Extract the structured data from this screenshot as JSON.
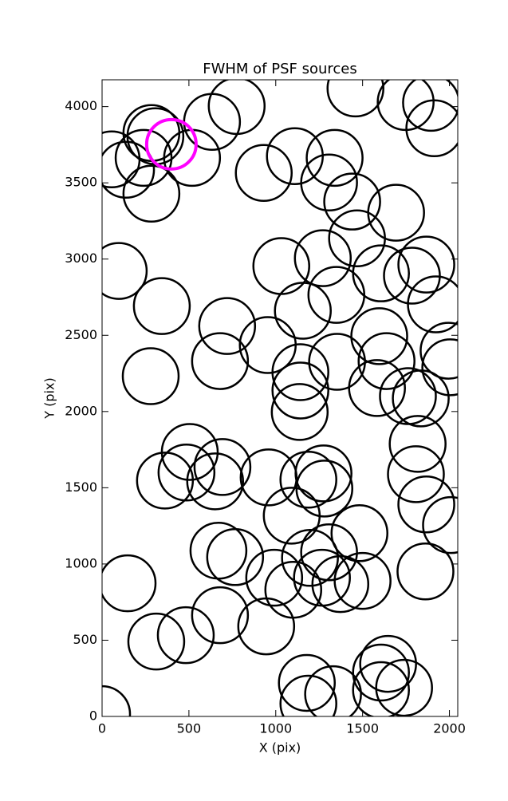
{
  "chart_data": {
    "type": "scatter",
    "title": "FWHM of PSF sources",
    "x_label": "X (pix)",
    "y_label": "Y (pix)",
    "xlim": [
      0,
      2048
    ],
    "ylim": [
      0,
      4176
    ],
    "xticks": [
      0,
      500,
      1000,
      1500,
      2000
    ],
    "yticks": [
      0,
      500,
      1000,
      1500,
      2000,
      2500,
      3000,
      3500,
      4000
    ],
    "series": [
      {
        "color": "#000000",
        "x": [
          0,
          147,
          312,
          482,
          679,
          945,
          1179,
          1188,
          1330,
          1606,
          1647,
          1606,
          1739,
          1862,
          2009,
          1867,
          1807,
          1817,
          1835,
          1761,
          1583,
          1638,
          1596,
          1995,
          2005,
          1922,
          1784,
          1867,
          1606,
          1468,
          1693,
          1440,
          1349,
          1271,
          1156,
          1032,
          1307,
          1339,
          1110,
          931,
          1459,
          1748,
          1894,
          1913,
          775,
          633,
          518,
          284,
          239,
          138,
          55,
          284,
          307,
          96,
          344,
          280,
          720,
          679,
          954,
          1142,
          1142,
          1138,
          1353,
          505,
          486,
          362,
          693,
          651,
          959,
          1188,
          1275,
          1280,
          1092,
          1482,
          670,
          766,
          991,
          1101,
          1197,
          1307,
          1266,
          1372,
          1500
        ],
        "y": [
          15,
          873,
          491,
          533,
          664,
          591,
          220,
          84,
          146,
          288,
          345,
          173,
          188,
          951,
          1255,
          1391,
          1589,
          1788,
          2086,
          2101,
          2154,
          2331,
          2494,
          2399,
          2290,
          2703,
          2891,
          2964,
          2906,
          3136,
          3304,
          3377,
          2765,
          3006,
          2661,
          2954,
          3502,
          3664,
          3675,
          3565,
          4119,
          4030,
          4025,
          3858,
          4004,
          3900,
          3664,
          3827,
          3664,
          3586,
          3654,
          3429,
          3806,
          2922,
          2692,
          2232,
          2561,
          2331,
          2436,
          2258,
          2138,
          1997,
          2326,
          1735,
          1600,
          1547,
          1636,
          1542,
          1568,
          1553,
          1594,
          1495,
          1317,
          1202,
          1087,
          1045,
          910,
          831,
          1040,
          1077,
          910,
          868,
          889
        ]
      },
      {
        "color": "#ff00ff",
        "x": [
          399
        ],
        "y": [
          3753
        ]
      }
    ]
  }
}
